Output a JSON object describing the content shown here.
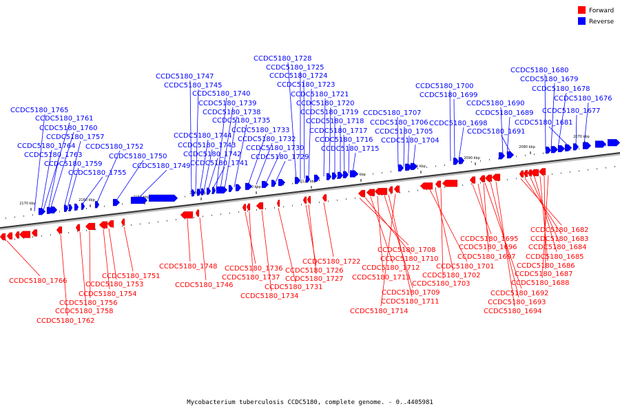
{
  "legend": {
    "forward": "Forward",
    "reverse": "Reverse",
    "forward_color": "#ff0000",
    "reverse_color": "#0000ff"
  },
  "caption": "Mycobacterium tuberculosis CCDC5180, complete genome. - 0..4405981",
  "axis_ticks": [
    "2170 kbp",
    "2160 kbp",
    "2150 kbp",
    "2140 kbp",
    "2130 kbp",
    "2120 kbp",
    "2110 kbp",
    "2100 kbp",
    "2090 kbp",
    "2080 kbp",
    "2070 kbp"
  ],
  "reverse_labels": [
    "CCDC5180_1765",
    "CCDC5180_1761",
    "CCDC5180_1760",
    "CCDC5180_1757",
    "CCDC5180_1764",
    "CCDC5180_1763",
    "CCDC5180_1759",
    "CCDC5180_1755",
    "CCDC5180_1752",
    "CCDC5180_1750",
    "CCDC5180_1749",
    "CCDC5180_1747",
    "CCDC5180_1745",
    "CCDC5180_1744",
    "CCDC5180_1743",
    "CCDC5180_1742",
    "CCDC5180_1741",
    "CCDC5180_1740",
    "CCDC5180_1739",
    "CCDC5180_1738",
    "CCDC5180_1735",
    "CCDC5180_1733",
    "CCDC5180_1732",
    "CCDC5180_1730",
    "CCDC5180_1729",
    "CCDC5180_1728",
    "CCDC5180_1725",
    "CCDC5180_1724",
    "CCDC5180_1723",
    "CCDC5180_1721",
    "CCDC5180_1720",
    "CCDC5180_1719",
    "CCDC5180_1718",
    "CCDC5180_1717",
    "CCDC5180_1716",
    "CCDC5180_1715",
    "CCDC5180_1707",
    "CCDC5180_1706",
    "CCDC5180_1705",
    "CCDC5180_1704",
    "CCDC5180_1700",
    "CCDC5180_1699",
    "CCDC5180_1698",
    "CCDC5180_1690",
    "CCDC5180_1689",
    "CCDC5180_1691",
    "CCDC5180_1680",
    "CCDC5180_1679",
    "CCDC5180_1678",
    "CCDC5180_1676",
    "CCDC5180_1677",
    "CCDC5180_1681"
  ],
  "forward_labels": [
    "CCDC5180_1766",
    "CCDC5180_1762",
    "CCDC5180_1758",
    "CCDC5180_1756",
    "CCDC5180_1754",
    "CCDC5180_1753",
    "CCDC5180_1751",
    "CCDC5180_1748",
    "CCDC5180_1746",
    "CCDC5180_1736",
    "CCDC5180_1737",
    "CCDC5180_1734",
    "CCDC5180_1731",
    "CCDC5180_1726",
    "CCDC5180_1727",
    "CCDC5180_1722",
    "CCDC5180_1708",
    "CCDC5180_1710",
    "CCDC5180_1712",
    "CCDC5180_1713",
    "CCDC5180_1709",
    "CCDC5180_1711",
    "CCDC5180_1714",
    "CCDC5180_1701",
    "CCDC5180_1702",
    "CCDC5180_1703",
    "CCDC5180_1695",
    "CCDC5180_1696",
    "CCDC5180_1697",
    "CCDC5180_1682",
    "CCDC5180_1683",
    "CCDC5180_1684",
    "CCDC5180_1685",
    "CCDC5180_1686",
    "CCDC5180_1687",
    "CCDC5180_1688",
    "CCDC5180_1692",
    "CCDC5180_1693",
    "CCDC5180_1694"
  ]
}
